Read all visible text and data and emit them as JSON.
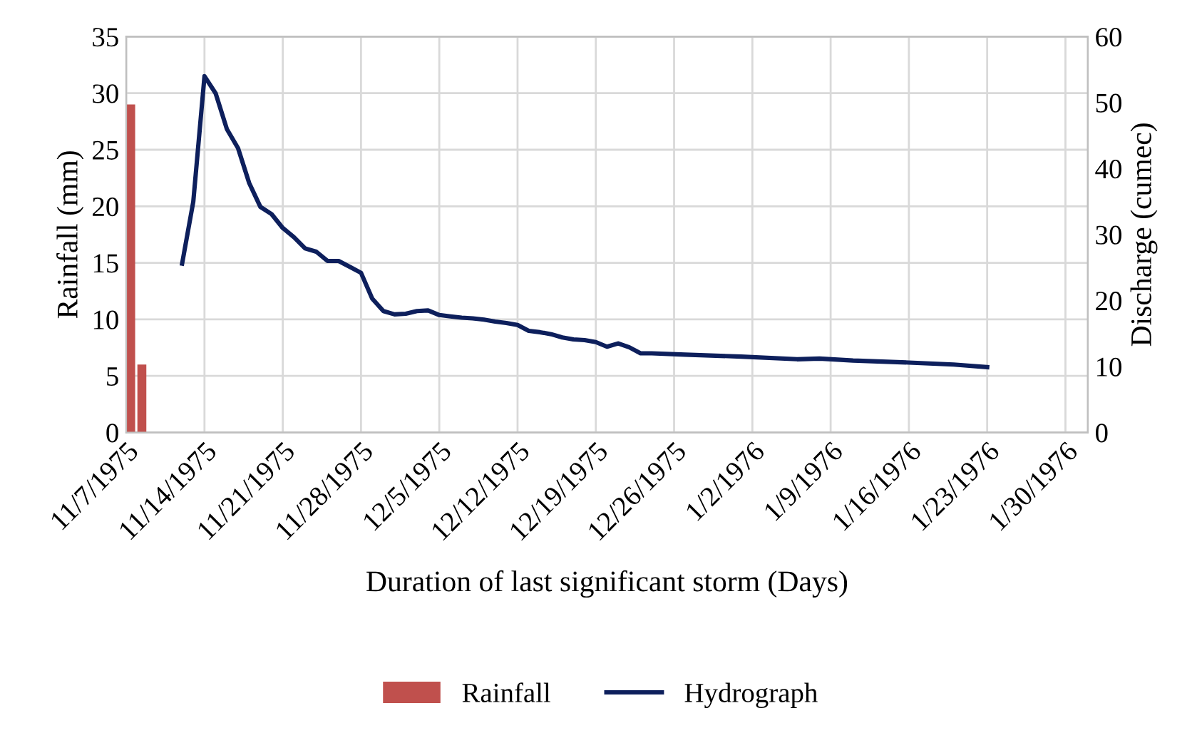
{
  "chart_data": {
    "type": "bar",
    "xlabel": "Duration of last significant storm (Days)",
    "ylabel": "Rainfall (mm)",
    "y2label": "Discharge (cumec)",
    "xlim": [
      "1975-11-07",
      "1976-02-01"
    ],
    "xticks": [
      {
        "value": "1975-11-07",
        "label": "11/7/1975"
      },
      {
        "value": "1975-11-14",
        "label": "11/14/1975"
      },
      {
        "value": "1975-11-21",
        "label": "11/21/1975"
      },
      {
        "value": "1975-11-28",
        "label": "11/28/1975"
      },
      {
        "value": "1975-12-05",
        "label": "12/5/1975"
      },
      {
        "value": "1975-12-12",
        "label": "12/12/1975"
      },
      {
        "value": "1975-12-19",
        "label": "12/19/1975"
      },
      {
        "value": "1975-12-26",
        "label": "12/26/1975"
      },
      {
        "value": "1976-01-02",
        "label": "1/2/1976"
      },
      {
        "value": "1976-01-09",
        "label": "1/9/1976"
      },
      {
        "value": "1976-01-16",
        "label": "1/16/1976"
      },
      {
        "value": "1976-01-23",
        "label": "1/23/1976"
      },
      {
        "value": "1976-01-30",
        "label": "1/30/1976"
      }
    ],
    "ylim": [
      0,
      35
    ],
    "yticks": [
      0,
      5,
      10,
      15,
      20,
      25,
      30,
      35
    ],
    "y2lim": [
      0,
      60
    ],
    "y2ticks": [
      0,
      10,
      20,
      30,
      40,
      50,
      60
    ],
    "grid": true,
    "legend": "bottom",
    "line_style": "solid",
    "series": [
      {
        "name": "Rainfall",
        "color": "#c0504d",
        "x": [
          "1975-11-07",
          "1975-11-08"
        ],
        "values": [
          29,
          6
        ]
      },
      {
        "name": "Hydrograph",
        "type": "line",
        "axis": "y2",
        "color": "#0d1f5c",
        "x": [
          "1975-11-12",
          "1975-11-13",
          "1975-11-14",
          "1975-11-15",
          "1975-11-16",
          "1975-11-17",
          "1975-11-18",
          "1975-11-19",
          "1975-11-20",
          "1975-11-21",
          "1975-11-22",
          "1975-11-23",
          "1975-11-24",
          "1975-11-25",
          "1975-11-26",
          "1975-11-27",
          "1975-11-28",
          "1975-11-29",
          "1975-11-30",
          "1975-12-01",
          "1975-12-02",
          "1975-12-03",
          "1975-12-04",
          "1975-12-05",
          "1975-12-06",
          "1975-12-07",
          "1975-12-08",
          "1975-12-09",
          "1975-12-10",
          "1975-12-11",
          "1975-12-12",
          "1975-12-13",
          "1975-12-14",
          "1975-12-15",
          "1975-12-16",
          "1975-12-17",
          "1975-12-18",
          "1975-12-19",
          "1975-12-20",
          "1975-12-21",
          "1975-12-22",
          "1975-12-23",
          "1975-12-24",
          "1975-12-27",
          "1976-01-01",
          "1976-01-06",
          "1976-01-08",
          "1976-01-11",
          "1976-01-16",
          "1976-01-20",
          "1976-01-23"
        ],
        "values": [
          25.6,
          35,
          54,
          51.4,
          46,
          43.1,
          37.8,
          34.2,
          33.1,
          31,
          29.6,
          27.9,
          27.4,
          26,
          26,
          25.1,
          24.2,
          20.3,
          18.4,
          17.9,
          18,
          18.4,
          18.5,
          17.8,
          17.6,
          17.4,
          17.3,
          17.1,
          16.8,
          16.6,
          16.3,
          15.4,
          15.2,
          14.9,
          14.4,
          14.1,
          14,
          13.7,
          13,
          13.5,
          12.9,
          12,
          12,
          11.8,
          11.5,
          11.1,
          11.2,
          10.9,
          10.6,
          10.3,
          9.9
        ]
      }
    ]
  }
}
